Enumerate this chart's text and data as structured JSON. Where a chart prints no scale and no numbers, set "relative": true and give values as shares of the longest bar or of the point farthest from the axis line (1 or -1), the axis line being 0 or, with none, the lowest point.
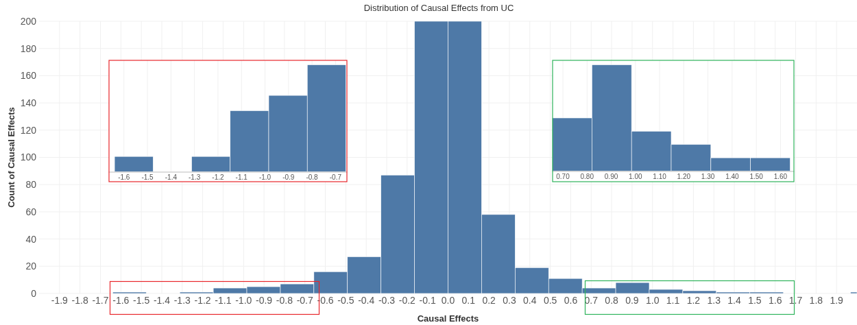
{
  "chart_data": [
    {
      "type": "histogram",
      "title": "Distribution of Causal Effects from UC",
      "xlabel": "Causal Effects",
      "ylabel": "Count of Causal Effects",
      "color": "#4e79a7",
      "bins": [
        -1.64,
        -1.476,
        -1.312,
        -1.148,
        -0.984,
        -0.82,
        -0.656,
        -0.492,
        -0.328,
        -0.164,
        0,
        0.164,
        0.328,
        0.492,
        0.656,
        0.82,
        0.984,
        1.148,
        1.312,
        1.476,
        1.64,
        1.968,
        2.0
      ],
      "values": [
        1,
        0,
        1,
        4,
        5,
        7,
        16,
        27,
        87,
        200,
        200,
        58,
        19,
        11,
        4,
        8,
        3,
        2,
        1,
        1,
        0,
        1
      ],
      "xlim": [
        -2.0,
        2.0
      ],
      "ylim": [
        0,
        200
      ],
      "xticks": [
        -1.9,
        -1.8,
        -1.7,
        -1.6,
        -1.5,
        -1.4,
        -1.3,
        -1.2,
        -1.1,
        {
          "value": -1,
          "label": "-1.0"
        },
        -0.9,
        -0.8,
        -0.7,
        -0.6,
        -0.5,
        -0.4,
        -0.3,
        -0.2,
        -0.1,
        {
          "value": 0,
          "label": "0.0"
        },
        0.1,
        0.2,
        0.3,
        0.4,
        0.5,
        0.6,
        0.7,
        0.8,
        0.9,
        {
          "value": 1,
          "label": "1.0"
        },
        1.1,
        1.2,
        1.3,
        1.4,
        1.5,
        1.6,
        1.7,
        1.8,
        1.9
      ],
      "yticks": [
        0,
        20,
        40,
        60,
        80,
        100,
        120,
        140,
        160,
        180,
        200
      ],
      "grid": true
    },
    {
      "type": "bar",
      "color": "#4e79a7",
      "relative": true,
      "tick_labels": "x",
      "grid": "x",
      "x": [
        -1.558,
        -1.394,
        -1.23,
        -1.066,
        -0.902,
        -0.738
      ],
      "values": [
        0.143,
        0,
        0.143,
        0.571,
        0.714,
        1
      ],
      "xlim": [
        -1.665,
        -0.65
      ],
      "xticks": [
        -1.6,
        -1.5,
        -1.4,
        -1.3,
        -1.2,
        -1.1,
        {
          "value": -1,
          "label": "-1.0"
        },
        -0.9,
        -0.8,
        -0.7
      ]
    },
    {
      "type": "bar",
      "color": "#4e79a7",
      "relative": true,
      "tick_labels": "x",
      "grid": "x",
      "x": [
        0.738,
        0.902,
        1.066,
        1.23,
        1.394,
        1.558
      ],
      "values": [
        0.5,
        1,
        0.375,
        0.25,
        0.125,
        0.125
      ],
      "xlim": [
        0.656,
        1.657
      ],
      "xticks": [
        {
          "value": 0.7,
          "label": "0.70"
        },
        {
          "value": 0.8,
          "label": "0.80"
        },
        {
          "value": 0.9,
          "label": "0.90"
        },
        {
          "value": 1,
          "label": "1.00"
        },
        {
          "value": 1.1,
          "label": "1.10"
        },
        {
          "value": 1.2,
          "label": "1.20"
        },
        {
          "value": 1.3,
          "label": "1.30"
        },
        {
          "value": 1.4,
          "label": "1.40"
        },
        {
          "value": 1.5,
          "label": "1.50"
        },
        {
          "value": 1.6,
          "label": "1.60"
        }
      ]
    }
  ]
}
